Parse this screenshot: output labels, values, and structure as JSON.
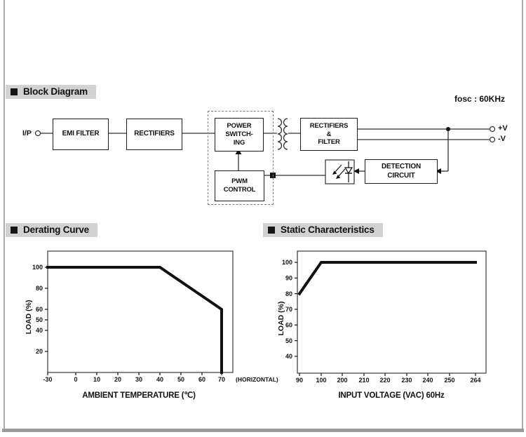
{
  "page": {
    "fosc_label": "fosc : 60KHz"
  },
  "headers": {
    "block_diagram": "Block Diagram",
    "derating_curve": "Derating Curve",
    "static_characteristics": "Static Characteristics"
  },
  "block_diagram": {
    "input_label": "I/P",
    "blocks": {
      "emi_filter": "EMI FILTER",
      "rectifiers": "RECTIFIERS",
      "power_switching": "POWER\nSWITCH-\nING",
      "pwm_control": "PWM\nCONTROL",
      "rectifiers_filter": "RECTIFIERS\n&\nFILTER",
      "detection_circuit": "DETECTION\nCIRCUIT"
    },
    "output_pos_label": "+V",
    "output_neg_label": "-V"
  },
  "chart_data": [
    {
      "id": "derating",
      "type": "line",
      "title": "Derating Curve",
      "xlabel": "AMBIENT TEMPERATURE (℃)",
      "ylabel": "LOAD (%)",
      "xticks": [
        "-30",
        "0",
        "10",
        "20",
        "30",
        "40",
        "50",
        "60",
        "70"
      ],
      "x_axis_note": "(HORIZONTAL)",
      "yticks": [
        20,
        40,
        50,
        60,
        80,
        100
      ],
      "ylim": [
        0,
        105
      ],
      "grid": false,
      "legend": false,
      "series": [
        {
          "name": "load_vs_ambient_temperature",
          "points": [
            [
              -30,
              100
            ],
            [
              40,
              100
            ],
            [
              70,
              60
            ],
            [
              70,
              0
            ]
          ]
        }
      ]
    },
    {
      "id": "static",
      "type": "line",
      "title": "Static Characteristics",
      "xlabel": "INPUT VOLTAGE (VAC) 60Hz",
      "ylabel": "LOAD (%)",
      "xticks": [
        "90",
        "100",
        "200",
        "210",
        "220",
        "230",
        "240",
        "250",
        "264"
      ],
      "yticks": [
        40,
        50,
        60,
        70,
        80,
        90,
        100
      ],
      "ylim": [
        30,
        105
      ],
      "grid": false,
      "legend": false,
      "series": [
        {
          "name": "load_vs_input_voltage",
          "points": [
            [
              90,
              80
            ],
            [
              100,
              100
            ],
            [
              264,
              100
            ]
          ]
        }
      ]
    }
  ]
}
